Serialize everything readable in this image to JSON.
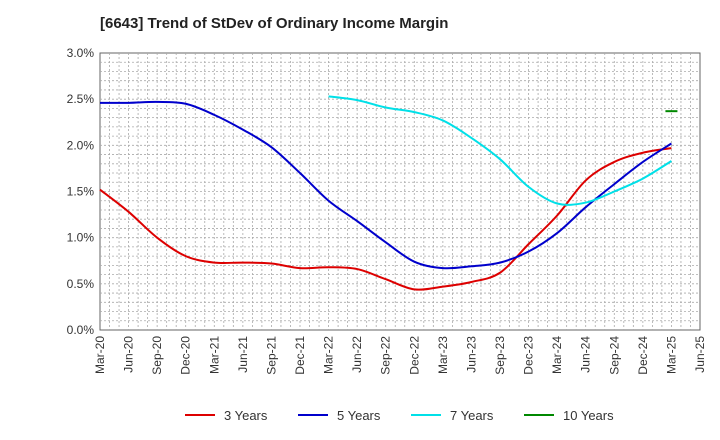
{
  "chart_data": {
    "type": "line",
    "title": "[6643]  Trend of StDev of Ordinary Income Margin",
    "xlabel": "",
    "ylabel": "",
    "x_labels": [
      "Mar-20",
      "Jun-20",
      "Sep-20",
      "Dec-20",
      "Mar-21",
      "Jun-21",
      "Sep-21",
      "Dec-21",
      "Mar-22",
      "Jun-22",
      "Sep-22",
      "Dec-22",
      "Mar-23",
      "Jun-23",
      "Sep-23",
      "Dec-23",
      "Mar-24",
      "Jun-24",
      "Sep-24",
      "Dec-24",
      "Mar-25",
      "Jun-25"
    ],
    "y_ticks": [
      "0.0%",
      "0.5%",
      "1.0%",
      "1.5%",
      "2.0%",
      "2.5%",
      "3.0%"
    ],
    "ylim": [
      0,
      3.0
    ],
    "grid": true,
    "legend_position": "bottom",
    "series": [
      {
        "name": "3 Years",
        "color": "#dd0000",
        "start_index": 0,
        "values": [
          1.52,
          1.28,
          1.0,
          0.8,
          0.73,
          0.73,
          0.72,
          0.67,
          0.68,
          0.66,
          0.55,
          0.44,
          0.47,
          0.52,
          0.62,
          0.93,
          1.24,
          1.62,
          1.82,
          1.92,
          1.97
        ]
      },
      {
        "name": "5 Years",
        "color": "#0000cc",
        "start_index": 0,
        "values": [
          2.46,
          2.46,
          2.47,
          2.45,
          2.33,
          2.17,
          1.98,
          1.7,
          1.4,
          1.18,
          0.95,
          0.74,
          0.67,
          0.69,
          0.73,
          0.85,
          1.05,
          1.33,
          1.58,
          1.82,
          2.02
        ]
      },
      {
        "name": "7 Years",
        "color": "#00e0e8",
        "start_index": 8,
        "values": [
          2.53,
          2.49,
          2.41,
          2.36,
          2.27,
          2.08,
          1.85,
          1.55,
          1.37,
          1.38,
          1.5,
          1.64,
          1.83
        ]
      },
      {
        "name": "10 Years",
        "color": "#008800",
        "start_index": 20,
        "values": [
          2.37
        ]
      }
    ]
  }
}
